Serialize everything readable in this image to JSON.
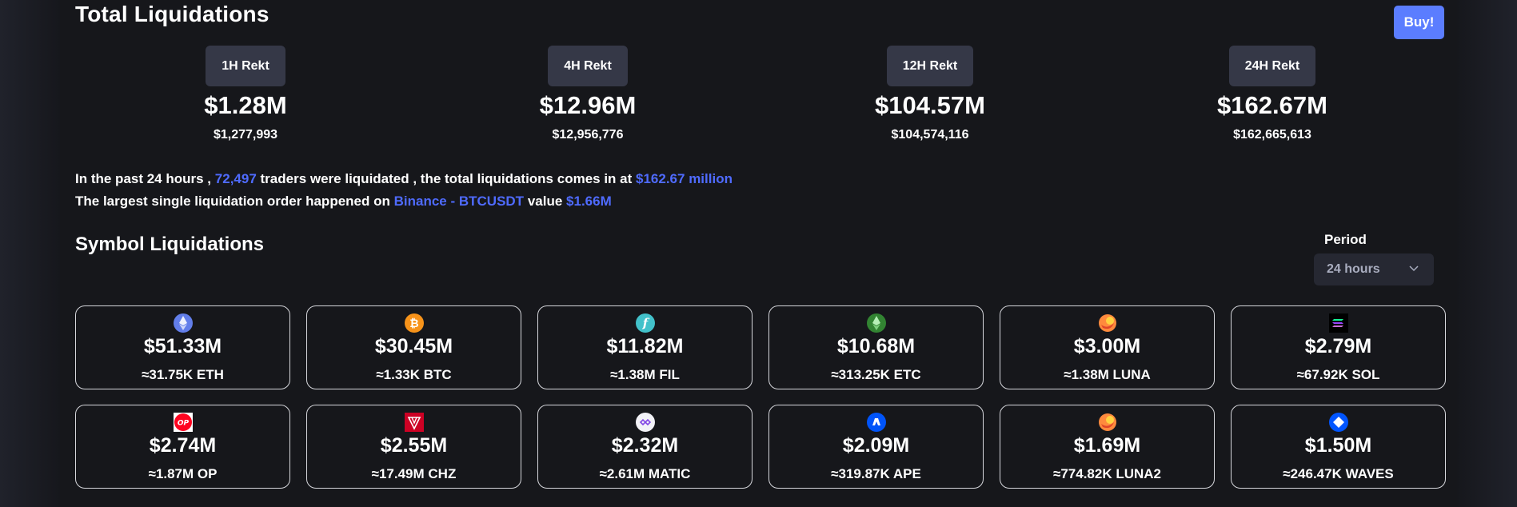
{
  "header": {
    "title": "Total Liquidations",
    "buy_label": "Buy!"
  },
  "stats": [
    {
      "label": "1H Rekt",
      "short": "$1.28M",
      "full": "$1,277,993"
    },
    {
      "label": "4H Rekt",
      "short": "$12.96M",
      "full": "$12,956,776"
    },
    {
      "label": "12H Rekt",
      "short": "$104.57M",
      "full": "$104,574,116"
    },
    {
      "label": "24H Rekt",
      "short": "$162.67M",
      "full": "$162,665,613"
    }
  ],
  "summary": {
    "line1_a": "In the past 24 hours ,",
    "traders": "72,497",
    "line1_b": "traders were liquidated , the total liquidations comes in at",
    "total": "$162.67 million",
    "line2_a": "The largest single liquidation order happened on",
    "exchange": "Binance - BTCUSDT",
    "line2_b": "value",
    "value": "$1.66M"
  },
  "symbols": {
    "title": "Symbol Liquidations",
    "period_label": "Period",
    "period_value": "24 hours",
    "cards": [
      {
        "usd": "$51.33M",
        "amount": "≈31.75K ETH",
        "icon": "eth-icon"
      },
      {
        "usd": "$30.45M",
        "amount": "≈1.33K BTC",
        "icon": "btc-icon"
      },
      {
        "usd": "$11.82M",
        "amount": "≈1.38M FIL",
        "icon": "fil-icon"
      },
      {
        "usd": "$10.68M",
        "amount": "≈313.25K ETC",
        "icon": "etc-icon"
      },
      {
        "usd": "$3.00M",
        "amount": "≈1.38M LUNA",
        "icon": "luna-icon"
      },
      {
        "usd": "$2.79M",
        "amount": "≈67.92K SOL",
        "icon": "sol-icon"
      },
      {
        "usd": "$2.74M",
        "amount": "≈1.87M OP",
        "icon": "op-icon"
      },
      {
        "usd": "$2.55M",
        "amount": "≈17.49M CHZ",
        "icon": "chz-icon"
      },
      {
        "usd": "$2.32M",
        "amount": "≈2.61M MATIC",
        "icon": "matic-icon"
      },
      {
        "usd": "$2.09M",
        "amount": "≈319.87K APE",
        "icon": "ape-icon"
      },
      {
        "usd": "$1.69M",
        "amount": "≈774.82K LUNA2",
        "icon": "luna2-icon"
      },
      {
        "usd": "$1.50M",
        "amount": "≈246.47K WAVES",
        "icon": "waves-icon"
      }
    ]
  },
  "colors": {
    "accent": "#4f6bff",
    "buy_button": "#5b7dff",
    "pill": "#353847"
  }
}
